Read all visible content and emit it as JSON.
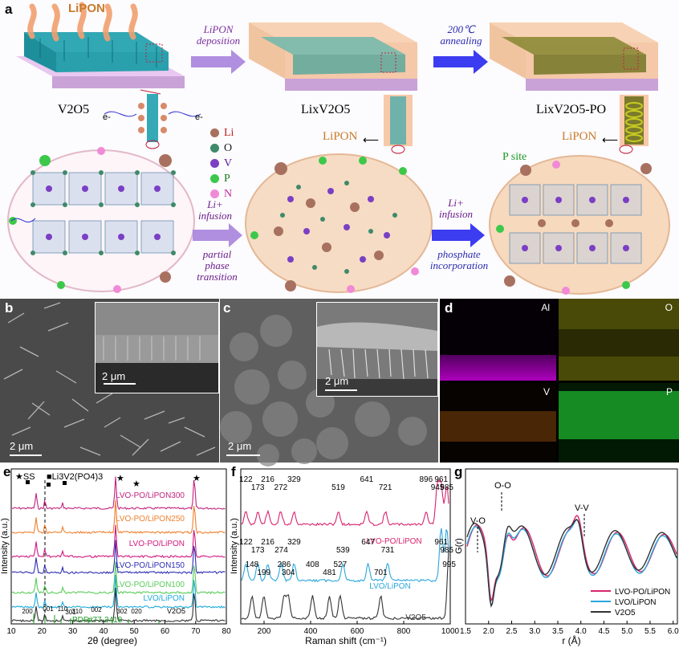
{
  "panel_a": {
    "label": "a",
    "lipon_top": "LiPON",
    "arrow1": [
      "LiPON",
      "deposition"
    ],
    "arrow2": [
      "200℃",
      "annealing"
    ],
    "stage1": "V2O5",
    "stage2": "LixV2O5",
    "stage3": "LixV2O5-PO",
    "lipon_mid": "LiPON",
    "lipon_right": "LiPON",
    "psite": "P site",
    "arrow3": [
      "Li+",
      "infusion",
      "partial",
      "phase",
      "transition"
    ],
    "arrow4": [
      "Li+",
      "infusion",
      "phosphate",
      "incorporation"
    ],
    "legend": [
      {
        "symbol": "Li",
        "color": "#a8715f"
      },
      {
        "symbol": "O",
        "color": "#3e8a6a"
      },
      {
        "symbol": "V",
        "color": "#7b3fc4"
      },
      {
        "symbol": "P",
        "color": "#3cc84a"
      },
      {
        "symbol": "N",
        "color": "#f08ad6"
      }
    ],
    "electron": "e-"
  },
  "panel_b": {
    "label": "b",
    "scale_main": "2 μm",
    "scale_inset": "2 μm"
  },
  "panel_c": {
    "label": "c",
    "scale_main": "2 μm",
    "scale_inset": "2 μm"
  },
  "panel_d": {
    "label": "d",
    "maps": [
      {
        "element": "Al",
        "color": "#b000c0"
      },
      {
        "element": "O",
        "color": "#a8a800"
      },
      {
        "element": "V",
        "color": "#b06010"
      },
      {
        "element": "P",
        "color": "#20b030"
      }
    ]
  },
  "panel_e": {
    "label": "e",
    "markers": [
      "★SS",
      "■Li3V2(PO4)3"
    ],
    "ylabel": "Intensity (a.u.)",
    "xlabel": "2θ (degree)",
    "pdf": "PDF#77-2418",
    "v2o5": "V2O5",
    "hkl": [
      "200",
      "001",
      "110",
      "301",
      "310",
      "002",
      "302",
      "020"
    ],
    "xticks": [
      "10",
      "20",
      "30",
      "40",
      "50",
      "60",
      "70",
      "80"
    ],
    "series": [
      {
        "name": "LVO-PO/LiPON300",
        "color": "#c2237e"
      },
      {
        "name": "LVO-PO/LiPON250",
        "color": "#ee7f2d"
      },
      {
        "name": "LVO-PO/LiPON",
        "color": "#d2187e"
      },
      {
        "name": "LVO-PO/LiPON150",
        "color": "#2d2db5"
      },
      {
        "name": "LVO-PO/LiPON100",
        "color": "#5acb5a"
      },
      {
        "name": "LVO/LiPON",
        "color": "#1eaadc"
      },
      {
        "name": "V2O5",
        "color": "#333333"
      }
    ]
  },
  "panel_f": {
    "label": "f",
    "ylabel": "Intensity (a.u.)",
    "xlabel": "Raman shift (cm⁻¹)",
    "xticks": [
      "200",
      "400",
      "600",
      "800",
      "1000"
    ],
    "series": [
      {
        "name": "LVO-PO/LiPON",
        "color": "#d8246e",
        "peaks": [
          "122",
          "173",
          "216",
          "272",
          "329",
          "519",
          "641",
          "721",
          "896",
          "945",
          "961",
          "985"
        ]
      },
      {
        "name": "LVO/LiPON",
        "color": "#2ba6dd",
        "peaks": [
          "122",
          "173",
          "216",
          "274",
          "329",
          "539",
          "647",
          "731",
          "961",
          "985"
        ]
      },
      {
        "name": "V2O5",
        "color": "#333333",
        "peaks": [
          "148",
          "199",
          "286",
          "304",
          "408",
          "481",
          "527",
          "701",
          "995"
        ]
      }
    ]
  },
  "panel_g": {
    "label": "g",
    "ylabel": "G(r)",
    "xlabel": "r (Å)",
    "xticks": [
      "1.5",
      "2.0",
      "2.5",
      "3.0",
      "3.5",
      "4.0",
      "4.5",
      "5.0",
      "5.5",
      "6.0"
    ],
    "annotations": [
      "V-O",
      "O-O",
      "V-V"
    ],
    "series": [
      {
        "name": "LVO-PO/LiPON",
        "color": "#d8246e"
      },
      {
        "name": "LVO/LiPON",
        "color": "#2ba6dd"
      },
      {
        "name": "V2O5",
        "color": "#333333"
      }
    ]
  }
}
